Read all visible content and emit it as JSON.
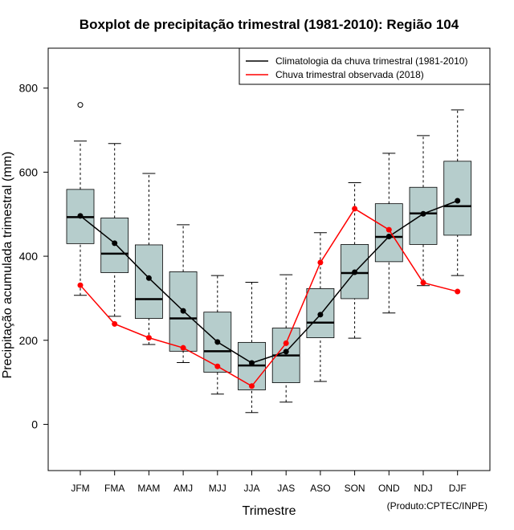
{
  "chart_data": {
    "type": "boxplot",
    "title": "Boxplot de precipitação trimestral (1981-2010): Região 104",
    "xlabel": "Trimestre",
    "ylabel": "Precipitação acumulada trimestral (mm)",
    "ylim": [
      -110,
      895
    ],
    "yticks": [
      0,
      200,
      400,
      600,
      800
    ],
    "credit": "(Produto:CPTEC/INPE)",
    "legend_position": "top-right",
    "categories": [
      "JFM",
      "FMA",
      "MAM",
      "AMJ",
      "MJJ",
      "JJA",
      "JAS",
      "ASO",
      "SON",
      "OND",
      "NDJ",
      "DJF"
    ],
    "boxes": [
      {
        "min": 307,
        "q1": 430,
        "median": 493,
        "q3": 559,
        "max": 674,
        "outliers": [
          760
        ]
      },
      {
        "min": 257,
        "q1": 361,
        "median": 406,
        "q3": 491,
        "max": 668,
        "outliers": []
      },
      {
        "min": 190,
        "q1": 252,
        "median": 298,
        "q3": 427,
        "max": 597,
        "outliers": []
      },
      {
        "min": 147,
        "q1": 174,
        "median": 252,
        "q3": 363,
        "max": 475,
        "outliers": []
      },
      {
        "min": 72,
        "q1": 124,
        "median": 174,
        "q3": 267,
        "max": 354,
        "outliers": []
      },
      {
        "min": 28,
        "q1": 82,
        "median": 140,
        "q3": 195,
        "max": 338,
        "outliers": []
      },
      {
        "min": 53,
        "q1": 99,
        "median": 164,
        "q3": 229,
        "max": 356,
        "outliers": []
      },
      {
        "min": 102,
        "q1": 206,
        "median": 242,
        "q3": 323,
        "max": 456,
        "outliers": []
      },
      {
        "min": 205,
        "q1": 299,
        "median": 360,
        "q3": 428,
        "max": 575,
        "outliers": []
      },
      {
        "min": 265,
        "q1": 387,
        "median": 446,
        "q3": 525,
        "max": 645,
        "outliers": []
      },
      {
        "min": 330,
        "q1": 428,
        "median": 502,
        "q3": 564,
        "max": 687,
        "outliers": []
      },
      {
        "min": 354,
        "q1": 450,
        "median": 519,
        "q3": 626,
        "max": 748,
        "outliers": []
      }
    ],
    "series": [
      {
        "name": "Climatologia da chuva trimestral (1981-2010)",
        "color": "#000000",
        "values": [
          496,
          431,
          348,
          270,
          196,
          146,
          173,
          261,
          362,
          447,
          501,
          532
        ]
      },
      {
        "name": "Chuva trimestral observada (2018)",
        "color": "#ff0000",
        "values": [
          331,
          239,
          206,
          182,
          138,
          91,
          193,
          385,
          513,
          463,
          337,
          316
        ]
      }
    ],
    "box_fill": "#b6cdcc",
    "outlier_style": "open-circle"
  }
}
